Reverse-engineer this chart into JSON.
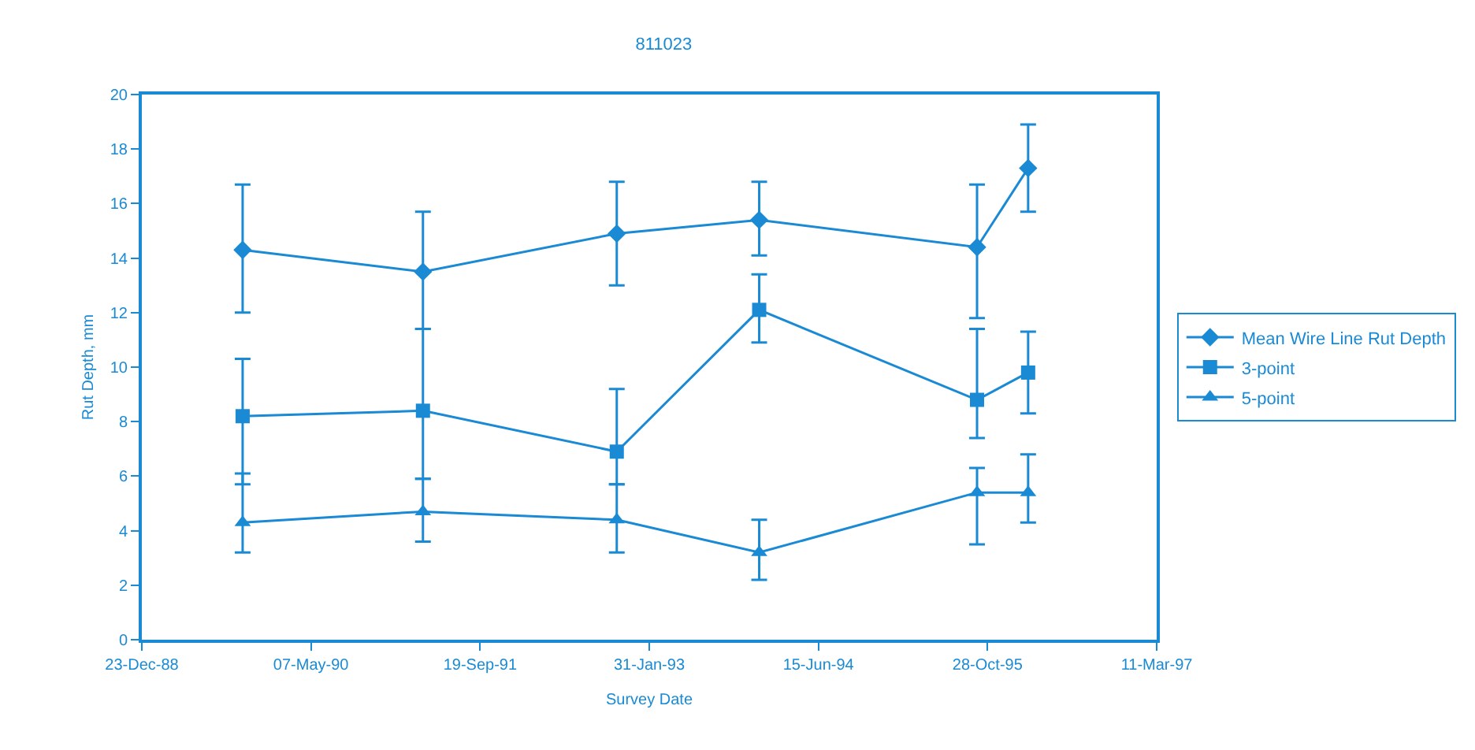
{
  "chart_data": {
    "type": "line",
    "title": "811023",
    "xlabel": "Survey Date",
    "ylabel": "Rut Depth, mm",
    "x": [
      "1989-10-17",
      "1991-04-03",
      "1992-10-27",
      "1993-12-22",
      "1995-09-27",
      "1996-02-25"
    ],
    "series": [
      {
        "name": "Mean Wire Line Rut Depth",
        "color": "#1a8ad4",
        "marker": "diamond",
        "values": [
          14.3,
          13.5,
          14.9,
          15.4,
          14.4,
          17.3
        ],
        "errors": [
          [
            12.0,
            16.7
          ],
          [
            11.4,
            15.7
          ],
          [
            13.0,
            16.8
          ],
          [
            14.1,
            16.8
          ],
          [
            11.8,
            16.7
          ],
          [
            15.7,
            18.9
          ]
        ]
      },
      {
        "name": "3-point",
        "color": "#1a8ad4",
        "marker": "square",
        "values": [
          8.2,
          8.4,
          6.9,
          12.1,
          8.8,
          9.8
        ],
        "errors": [
          [
            5.7,
            10.3
          ],
          [
            5.9,
            11.4
          ],
          [
            5.7,
            9.2
          ],
          [
            10.9,
            13.4
          ],
          [
            7.4,
            11.4
          ],
          [
            8.3,
            11.3
          ]
        ]
      },
      {
        "name": "5-point",
        "color": "#1a8ad4",
        "marker": "triangle",
        "values": [
          4.3,
          4.7,
          4.4,
          3.2,
          5.4,
          5.4
        ],
        "errors": [
          [
            3.2,
            6.1
          ],
          [
            3.6,
            5.9
          ],
          [
            3.2,
            5.7
          ],
          [
            2.2,
            4.4
          ],
          [
            3.5,
            6.3
          ],
          [
            4.3,
            6.8
          ]
        ]
      }
    ],
    "xlim": [
      "1988-12-23",
      "1997-03-11"
    ],
    "xticks": [
      {
        "value": "1988-12-23",
        "label": "23-Dec-88"
      },
      {
        "value": "1990-05-07",
        "label": "07-May-90"
      },
      {
        "value": "1991-09-19",
        "label": "19-Sep-91"
      },
      {
        "value": "1993-01-31",
        "label": "31-Jan-93"
      },
      {
        "value": "1994-06-15",
        "label": "15-Jun-94"
      },
      {
        "value": "1995-10-28",
        "label": "28-Oct-95"
      },
      {
        "value": "1997-03-11",
        "label": "11-Mar-97"
      }
    ],
    "ylim": [
      0,
      20
    ],
    "yticks": [
      0,
      2,
      4,
      6,
      8,
      10,
      12,
      14,
      16,
      18,
      20
    ],
    "grid": false,
    "legend": "right"
  }
}
